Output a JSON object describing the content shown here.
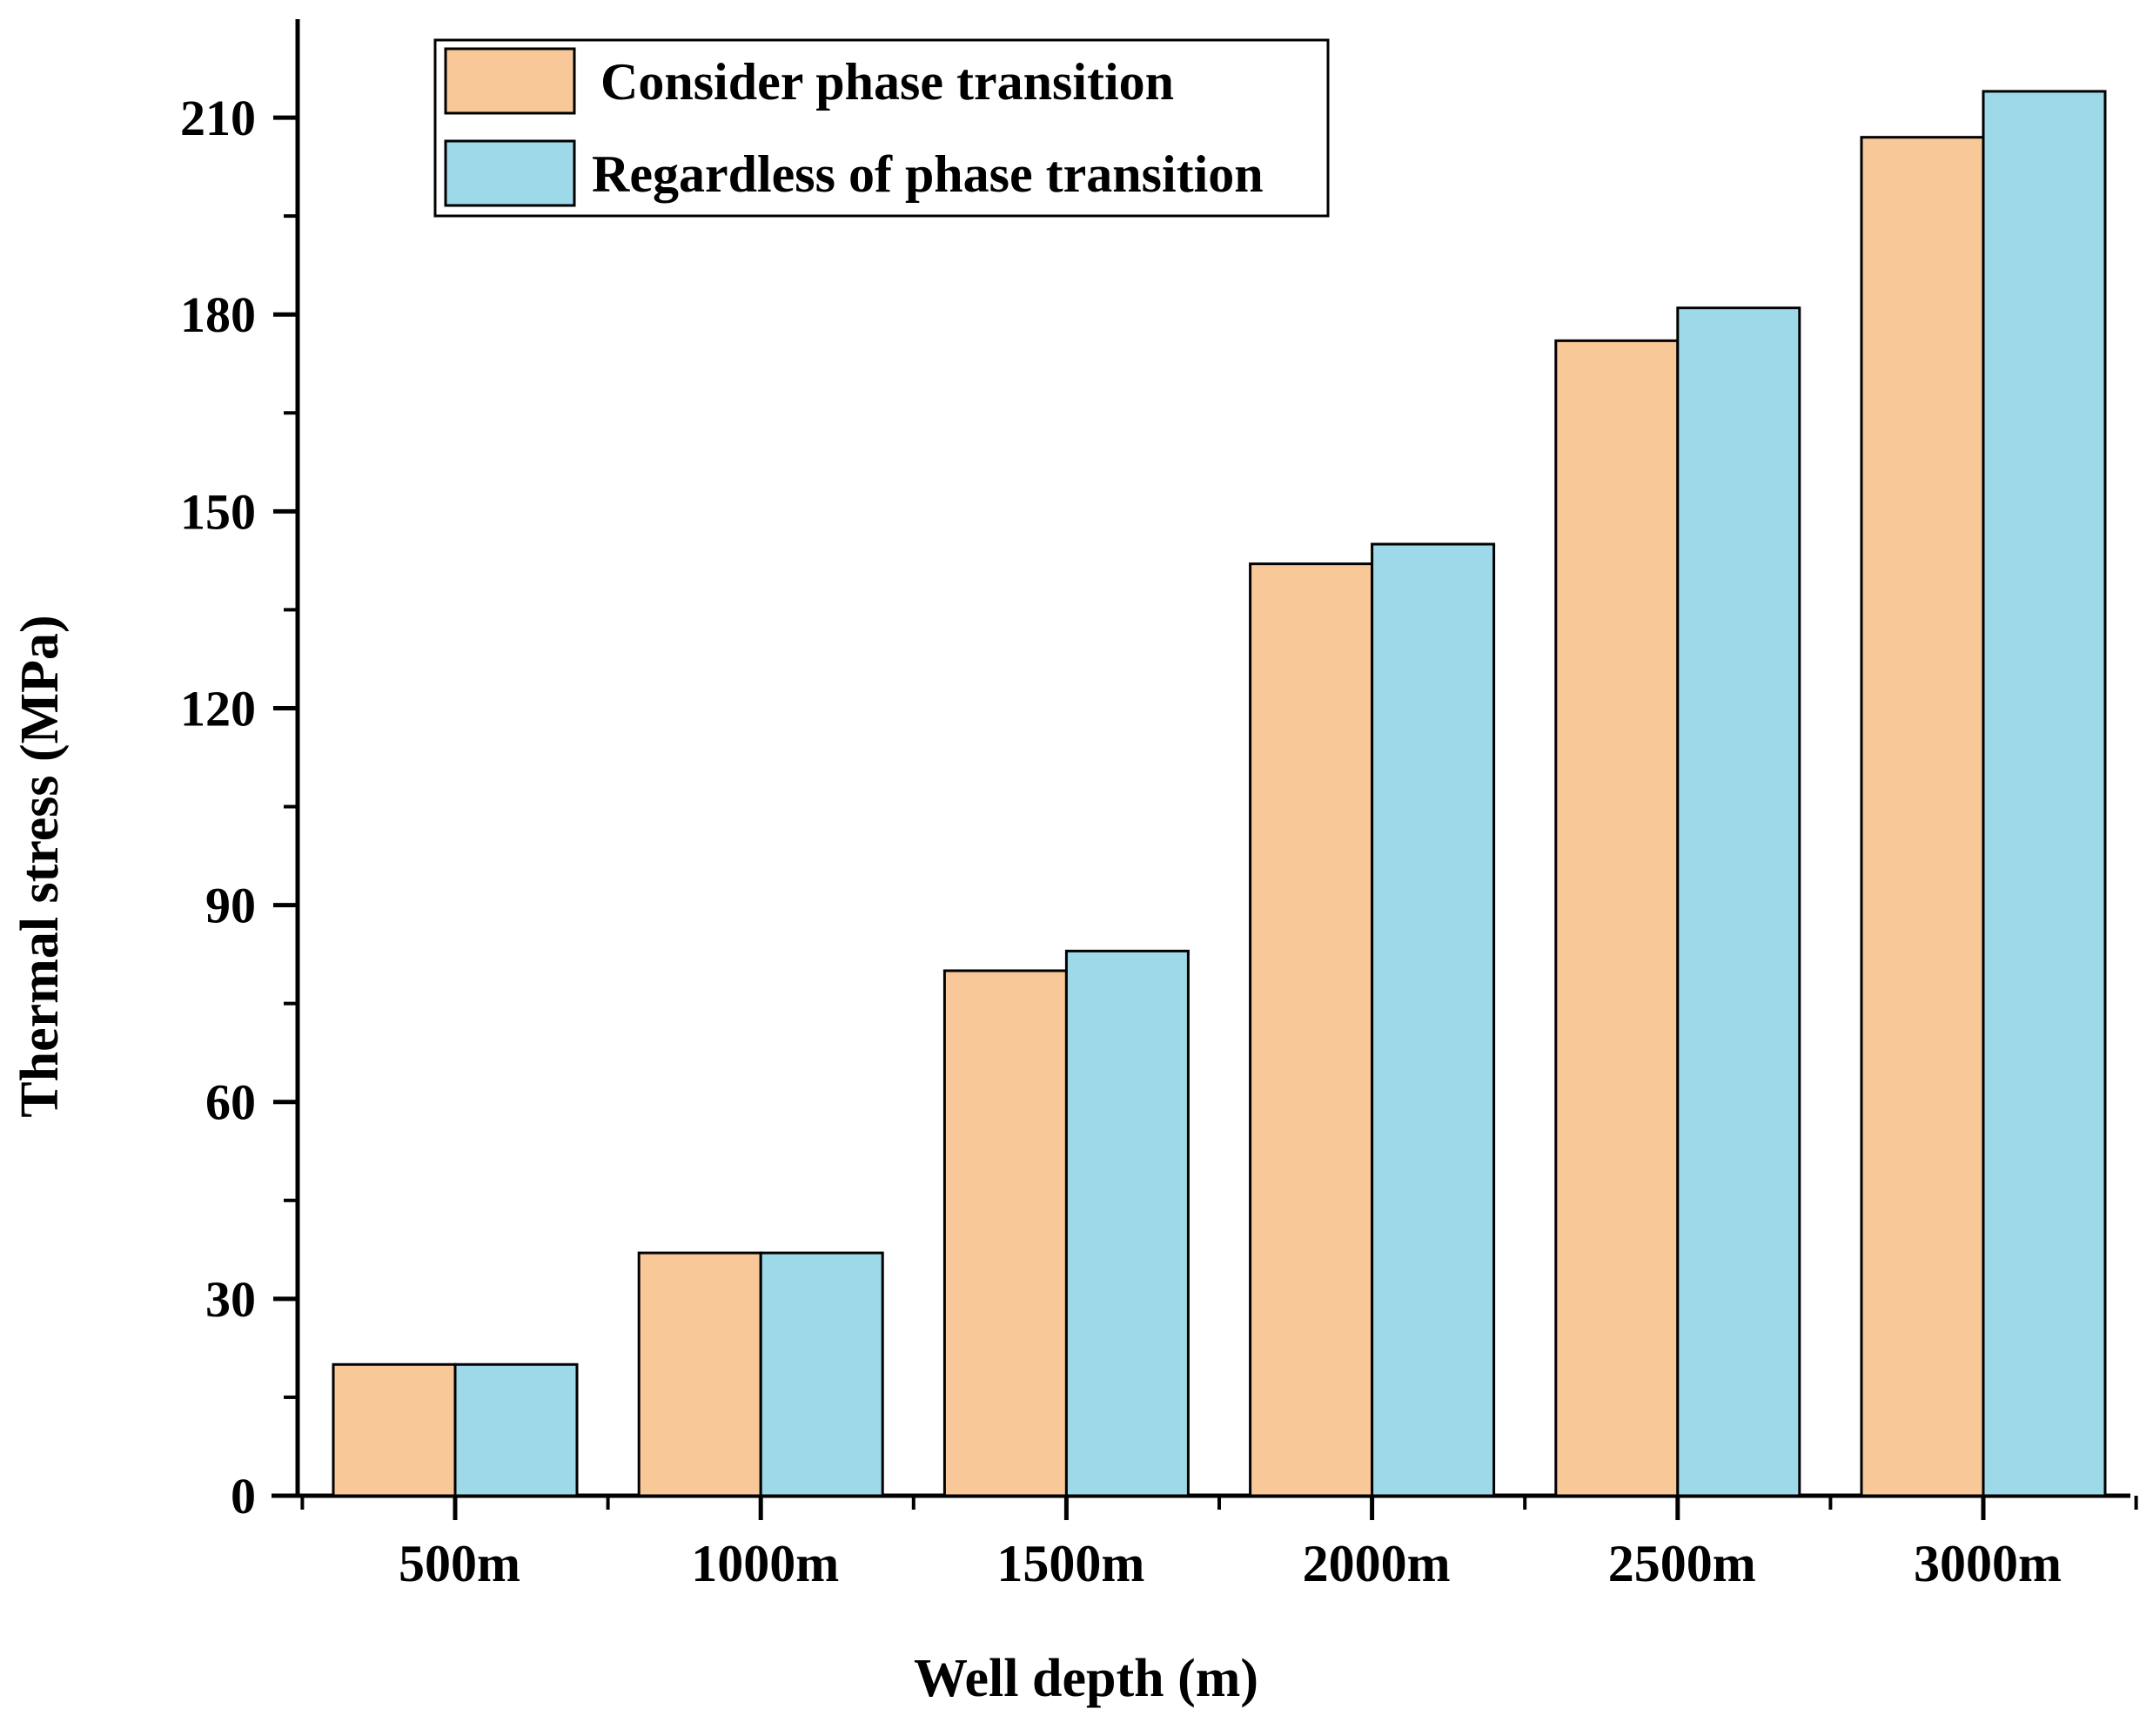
{
  "chart_data": {
    "type": "bar",
    "title": "",
    "xlabel": "Well depth (m)",
    "ylabel": "Thermal stress (MPa)",
    "categories": [
      "500m",
      "1000m",
      "1500m",
      "2000m",
      "2500m",
      "3000m"
    ],
    "series": [
      {
        "name": "Consider phase transition",
        "color": "#F9C898",
        "values": [
          20,
          37,
          80,
          142,
          176,
          207
        ]
      },
      {
        "name": "Regardless of phase transition",
        "color": "#9DD9E8",
        "values": [
          20,
          37,
          83,
          145,
          181,
          214
        ]
      }
    ],
    "ylim": [
      0,
      225
    ],
    "yticks": [
      "0",
      "30",
      "60",
      "90",
      "120",
      "150",
      "180",
      "210"
    ],
    "grid": false,
    "legend_position": "top-left"
  }
}
